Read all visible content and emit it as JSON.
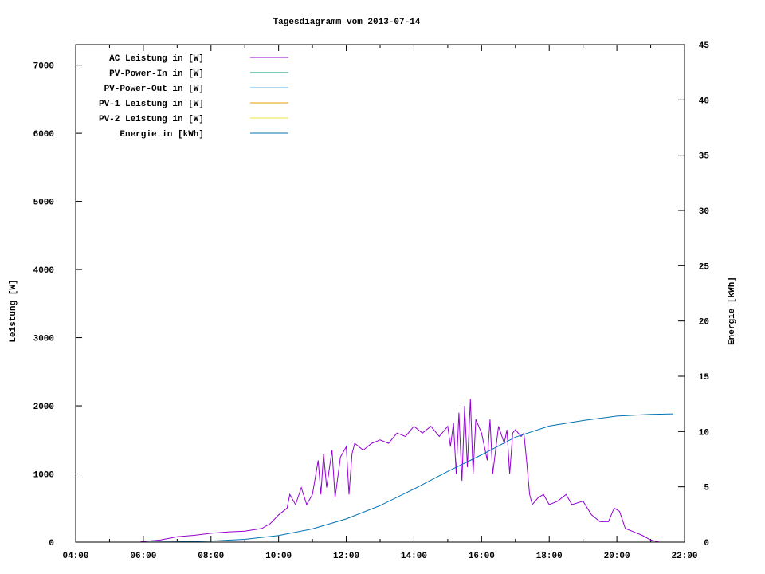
{
  "chart_data": {
    "type": "line",
    "title": "Tagesdiagramm vom 2013-07-14",
    "ylabel": "Leistung [W]",
    "y2label": "Energie [kWh]",
    "xlim_hours": [
      4,
      22
    ],
    "ylim": [
      0,
      7300
    ],
    "y2lim": [
      0,
      45
    ],
    "x_ticks": [
      "04:00",
      "06:00",
      "08:00",
      "10:00",
      "12:00",
      "14:00",
      "16:00",
      "18:00",
      "20:00",
      "22:00"
    ],
    "y_ticks": [
      0,
      1000,
      2000,
      3000,
      4000,
      5000,
      6000,
      7000
    ],
    "y2_ticks": [
      0,
      5,
      10,
      15,
      20,
      25,
      30,
      35,
      40,
      45
    ],
    "legend_position": "top-left",
    "series": [
      {
        "name": "AC Leistung in [W]",
        "color": "#9400d3",
        "axis": "left",
        "x": [
          5.9,
          6.0,
          6.5,
          7.0,
          7.5,
          8.0,
          8.5,
          9.0,
          9.5,
          9.75,
          10.0,
          10.25,
          10.33,
          10.5,
          10.67,
          10.83,
          11.0,
          11.17,
          11.25,
          11.33,
          11.42,
          11.58,
          11.67,
          11.83,
          12.0,
          12.08,
          12.17,
          12.25,
          12.5,
          12.75,
          13.0,
          13.25,
          13.5,
          13.75,
          14.0,
          14.25,
          14.5,
          14.75,
          15.0,
          15.08,
          15.17,
          15.25,
          15.33,
          15.42,
          15.5,
          15.58,
          15.67,
          15.75,
          15.83,
          16.0,
          16.17,
          16.25,
          16.33,
          16.5,
          16.67,
          16.75,
          16.83,
          16.92,
          17.0,
          17.17,
          17.25,
          17.33,
          17.42,
          17.5,
          17.67,
          17.83,
          18.0,
          18.25,
          18.5,
          18.67,
          19.0,
          19.25,
          19.5,
          19.75,
          19.92,
          20.08,
          20.25,
          20.5,
          20.75,
          21.0,
          21.25,
          21.6
        ],
        "values": [
          0,
          10,
          30,
          80,
          100,
          130,
          150,
          160,
          200,
          270,
          400,
          500,
          700,
          550,
          800,
          550,
          700,
          1200,
          700,
          1300,
          800,
          1350,
          650,
          1250,
          1400,
          700,
          1300,
          1450,
          1350,
          1450,
          1500,
          1450,
          1600,
          1550,
          1700,
          1600,
          1700,
          1550,
          1700,
          1400,
          1750,
          1000,
          1900,
          900,
          2000,
          1100,
          2100,
          1000,
          1800,
          1600,
          1200,
          1800,
          1000,
          1700,
          1450,
          1650,
          1000,
          1600,
          1650,
          1550,
          1600,
          1200,
          700,
          550,
          650,
          700,
          550,
          600,
          700,
          550,
          600,
          400,
          300,
          300,
          500,
          450,
          200,
          150,
          100,
          30,
          0,
          0
        ]
      },
      {
        "name": "PV-Power-In in [W]",
        "color": "#009e73",
        "axis": "left",
        "x": [],
        "values": []
      },
      {
        "name": "PV-Power-Out in [W]",
        "color": "#56b4e9",
        "axis": "left",
        "x": [],
        "values": []
      },
      {
        "name": "PV-1 Leistung in [W]",
        "color": "#e69f00",
        "axis": "left",
        "x": [],
        "values": []
      },
      {
        "name": "PV-2 Leistung in [W]",
        "color": "#f0e442",
        "axis": "left",
        "x": [],
        "values": []
      },
      {
        "name": "Energie in [kWh]",
        "color": "#0072b2",
        "axis": "right",
        "x": [
          6,
          7,
          8,
          9,
          10,
          11,
          12,
          13,
          14,
          15,
          16,
          17,
          18,
          19,
          20,
          21,
          21.67
        ],
        "values": [
          0,
          0.03,
          0.1,
          0.25,
          0.6,
          1.2,
          2.1,
          3.3,
          4.8,
          6.4,
          7.9,
          9.5,
          10.5,
          11.0,
          11.4,
          11.55,
          11.6
        ]
      }
    ]
  }
}
